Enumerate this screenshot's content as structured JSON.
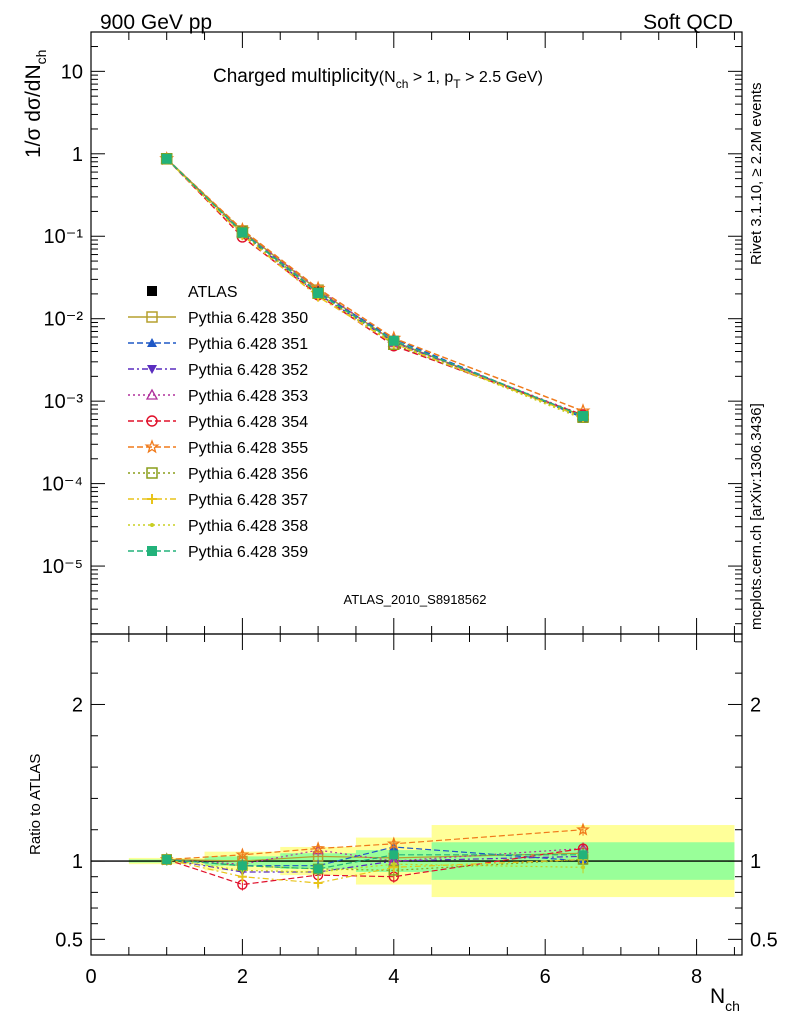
{
  "header": {
    "left": "900 GeV pp",
    "right": "Soft QCD"
  },
  "title": {
    "main": "Charged multiplicity",
    "sub_prefix": "(N",
    "sub_ch": "ch",
    "sub_mid": " > 1, p",
    "sub_T": "T",
    "sub_suffix": " > 2.5 GeV)"
  },
  "side_labels": {
    "rivet": "Rivet 3.1.10, ≥ 2.2M events",
    "mcplots": "mcplots.cern.ch [arXiv:1306.3436]"
  },
  "watermark": "ATLAS_2010_S8918562",
  "axes": {
    "ylabel_main": "1/σ dσ/dN",
    "ylabel_main_sub": "ch",
    "ylabel_ratio": "Ratio to ATLAS",
    "xlabel": "N",
    "xlabel_sub": "ch"
  },
  "chart_data": [
    {
      "type": "line",
      "panel": "main",
      "x": [
        1,
        2,
        3,
        4,
        6.5
      ],
      "xlim": [
        0,
        8.6
      ],
      "ylim": [
        1.5e-06,
        30
      ],
      "yscale": "log",
      "ytick_labels": [
        "10",
        "1",
        "10⁻¹",
        "10⁻²",
        "10⁻³",
        "10⁻⁴",
        "10⁻⁵"
      ],
      "legend_position": "middle-left",
      "series": [
        {
          "name": "ATLAS",
          "values": [
            0.86,
            0.115,
            0.0215,
            0.0052,
            0.00063
          ],
          "color": "#000000",
          "marker": "square-filled",
          "dash": "none"
        },
        {
          "name": "Pythia 6.428 350",
          "values": [
            0.87,
            0.116,
            0.0222,
            0.0053,
            0.00066
          ],
          "color": "#b5a02f",
          "marker": "square-open",
          "dash": "solid"
        },
        {
          "name": "Pythia 6.428 351",
          "values": [
            0.87,
            0.112,
            0.0209,
            0.0057,
            0.00063
          ],
          "color": "#1f58c6",
          "marker": "triangle-up-filled",
          "dash": "6,3"
        },
        {
          "name": "Pythia 6.428 352",
          "values": [
            0.87,
            0.107,
            0.0199,
            0.0052,
            0.00065
          ],
          "color": "#5a2dbf",
          "marker": "triangle-down-filled",
          "dash": "6,3,2,3"
        },
        {
          "name": "Pythia 6.428 353",
          "values": [
            0.87,
            0.113,
            0.023,
            0.0052,
            0.00068
          ],
          "color": "#b0309c",
          "marker": "triangle-up-open",
          "dash": "2,3"
        },
        {
          "name": "Pythia 6.428 354",
          "values": [
            0.87,
            0.098,
            0.0195,
            0.0047,
            0.00068
          ],
          "color": "#e0102a",
          "marker": "circle-open",
          "dash": "6,3"
        },
        {
          "name": "Pythia 6.428 355",
          "values": [
            0.87,
            0.12,
            0.0233,
            0.0058,
            0.00076
          ],
          "color": "#f07a1a",
          "marker": "star-open",
          "dash": "6,3"
        },
        {
          "name": "Pythia 6.428 356",
          "values": [
            0.87,
            0.111,
            0.0204,
            0.0049,
            0.00064
          ],
          "color": "#8a9e1a",
          "marker": "square-open",
          "dash": "2,3"
        },
        {
          "name": "Pythia 6.428 357",
          "values": [
            0.87,
            0.103,
            0.0185,
            0.005,
            0.00064
          ],
          "color": "#e8c41a",
          "marker": "cross",
          "dash": "6,3,2,3"
        },
        {
          "name": "Pythia 6.428 358",
          "values": [
            0.87,
            0.108,
            0.02,
            0.0051,
            0.00061
          ],
          "color": "#c8cf22",
          "marker": "dot",
          "dash": "2,3"
        },
        {
          "name": "Pythia 6.428 359",
          "values": [
            0.87,
            0.111,
            0.0205,
            0.0054,
            0.00066
          ],
          "color": "#22b27a",
          "marker": "square-filled",
          "dash": "6,3"
        }
      ]
    },
    {
      "type": "line",
      "panel": "ratio",
      "x": [
        1,
        2,
        3,
        4,
        6.5
      ],
      "xlim": [
        0,
        8.6
      ],
      "ylim": [
        0.4,
        2.45
      ],
      "yticks": [
        0.5,
        1,
        2
      ],
      "ytick_labels": [
        "0.5",
        "1",
        "2"
      ],
      "xticks": [
        0,
        2,
        4,
        6,
        8
      ],
      "xtick_labels": [
        "0",
        "2",
        "4",
        "6",
        "8"
      ],
      "bands": [
        {
          "x_range": [
            0.5,
            1.5
          ],
          "yellow": [
            0.98,
            1.02
          ],
          "green": [
            0.99,
            1.01
          ]
        },
        {
          "x_range": [
            1.5,
            2.5
          ],
          "yellow": [
            0.94,
            1.06
          ],
          "green": [
            0.97,
            1.03
          ]
        },
        {
          "x_range": [
            2.5,
            3.5
          ],
          "yellow": [
            0.91,
            1.09
          ],
          "green": [
            0.95,
            1.05
          ]
        },
        {
          "x_range": [
            3.5,
            4.5
          ],
          "yellow": [
            0.85,
            1.15
          ],
          "green": [
            0.93,
            1.07
          ]
        },
        {
          "x_range": [
            4.5,
            8.5
          ],
          "yellow": [
            0.77,
            1.23
          ],
          "green": [
            0.88,
            1.12
          ]
        }
      ],
      "reference": 1,
      "series": [
        {
          "name": "Pythia 6.428 350",
          "values": [
            1.01,
            1.0,
            1.03,
            1.02,
            1.05
          ]
        },
        {
          "name": "Pythia 6.428 351",
          "values": [
            1.01,
            0.97,
            0.97,
            1.09,
            1.0
          ]
        },
        {
          "name": "Pythia 6.428 352",
          "values": [
            1.01,
            0.93,
            0.93,
            1.0,
            1.03
          ]
        },
        {
          "name": "Pythia 6.428 353",
          "values": [
            1.01,
            0.98,
            1.07,
            1.0,
            1.08
          ]
        },
        {
          "name": "Pythia 6.428 354",
          "values": [
            1.01,
            0.85,
            0.91,
            0.9,
            1.08
          ]
        },
        {
          "name": "Pythia 6.428 355",
          "values": [
            1.01,
            1.04,
            1.08,
            1.11,
            1.2
          ]
        },
        {
          "name": "Pythia 6.428 356",
          "values": [
            1.01,
            0.97,
            0.95,
            0.94,
            1.01
          ]
        },
        {
          "name": "Pythia 6.428 357",
          "values": [
            1.01,
            0.9,
            0.86,
            0.96,
            1.01
          ]
        },
        {
          "name": "Pythia 6.428 358",
          "values": [
            1.01,
            0.94,
            0.93,
            0.98,
            0.96
          ]
        },
        {
          "name": "Pythia 6.428 359",
          "values": [
            1.01,
            0.97,
            0.95,
            1.04,
            1.04
          ]
        }
      ]
    }
  ]
}
